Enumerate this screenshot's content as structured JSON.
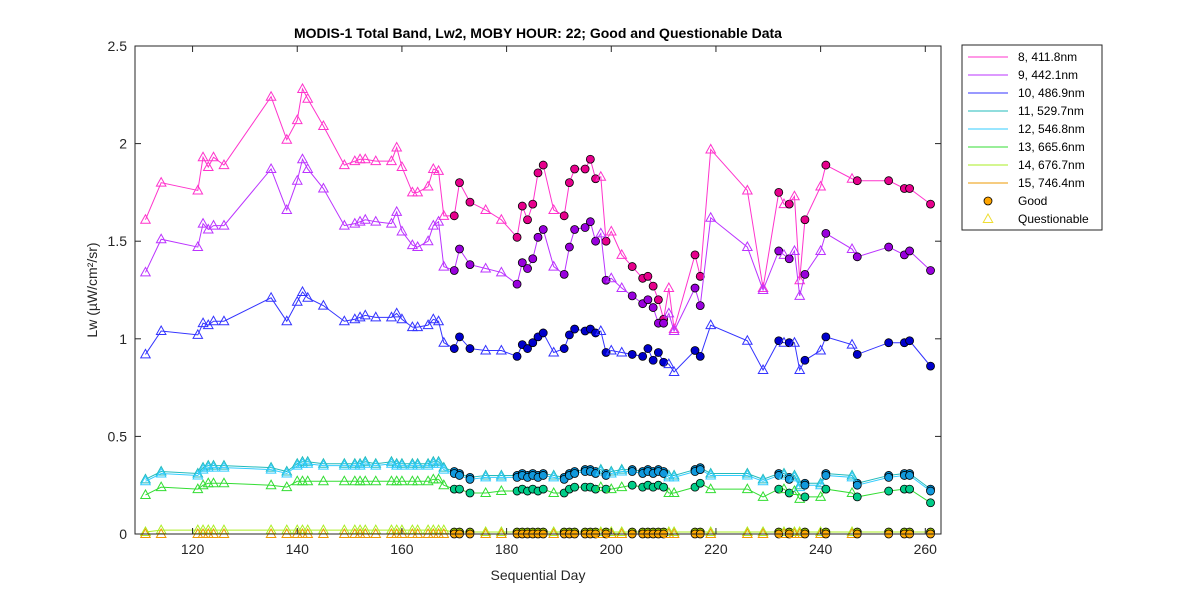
{
  "chart_data": {
    "type": "line",
    "title": "MODIS-1 Total Band,  Lw2, MOBY HOUR: 22;  Good and Questionable Data",
    "xlabel": "Sequential Day",
    "ylabel": "Lw (µW/cm²/sr)",
    "xlim": [
      109,
      263
    ],
    "ylim": [
      0,
      2.5
    ],
    "xticks": [
      120,
      140,
      160,
      180,
      200,
      220,
      240,
      260
    ],
    "xtick_labels": [
      "120",
      "140",
      "160",
      "180",
      "200",
      "220",
      "240",
      "260"
    ],
    "yticks": [
      0,
      0.5,
      1,
      1.5,
      2,
      2.5
    ],
    "ytick_labels": [
      "0",
      "0.5",
      "1",
      "1.5",
      "2",
      "2.5"
    ],
    "legend_position": "outside-top-right",
    "x": [
      111,
      114,
      121,
      122,
      123,
      124,
      126,
      135,
      138,
      140,
      141,
      142,
      145,
      149,
      151,
      152,
      153,
      155,
      158,
      159,
      160,
      162,
      163,
      165,
      166,
      167,
      168,
      170,
      171,
      173,
      176,
      179,
      182,
      183,
      184,
      185,
      186,
      187,
      189,
      191,
      192,
      193,
      195,
      196,
      197,
      198,
      199,
      200,
      202,
      204,
      206,
      207,
      208,
      209,
      210,
      211,
      212,
      216,
      217,
      219,
      226,
      229,
      232,
      233,
      234,
      235,
      236,
      237,
      240,
      241,
      246,
      247,
      253,
      256,
      257,
      261
    ],
    "markers": [
      "Q",
      "Q",
      "Q",
      "Q",
      "Q",
      "Q",
      "Q",
      "Q",
      "Q",
      "Q",
      "Q",
      "Q",
      "Q",
      "Q",
      "Q",
      "Q",
      "Q",
      "Q",
      "Q",
      "Q",
      "Q",
      "Q",
      "Q",
      "Q",
      "Q",
      "Q",
      "Q",
      "G",
      "G",
      "G",
      "Q",
      "Q",
      "G",
      "G",
      "G",
      "G",
      "G",
      "G",
      "Q",
      "G",
      "G",
      "G",
      "G",
      "G",
      "G",
      "Q",
      "G",
      "Q",
      "Q",
      "G",
      "G",
      "G",
      "G",
      "G",
      "G",
      "Q",
      "Q",
      "G",
      "G",
      "Q",
      "Q",
      "Q",
      "G",
      "Q",
      "G",
      "Q",
      "Q",
      "G",
      "Q",
      "G",
      "Q",
      "G",
      "G",
      "G",
      "G",
      "G"
    ],
    "series": [
      {
        "name": "8, 411.8nm",
        "color": "#ff33cc",
        "color_good": "#e6008c",
        "values": [
          1.61,
          1.8,
          1.76,
          1.93,
          1.88,
          1.93,
          1.89,
          2.24,
          2.02,
          2.12,
          2.28,
          2.23,
          2.09,
          1.89,
          1.91,
          1.92,
          1.92,
          1.91,
          1.91,
          1.98,
          1.88,
          1.75,
          1.75,
          1.78,
          1.87,
          1.86,
          1.63,
          1.63,
          1.8,
          1.7,
          1.66,
          1.61,
          1.52,
          1.68,
          1.61,
          1.69,
          1.85,
          1.89,
          1.66,
          1.63,
          1.8,
          1.87,
          1.87,
          1.92,
          1.82,
          1.83,
          1.5,
          1.55,
          1.43,
          1.37,
          1.31,
          1.32,
          1.27,
          1.2,
          1.1,
          1.26,
          1.05,
          1.43,
          1.32,
          1.97,
          1.76,
          1.26,
          1.75,
          1.69,
          1.69,
          1.73,
          1.3,
          1.61,
          1.78,
          1.89,
          1.82,
          1.81,
          1.81,
          1.77,
          1.77,
          1.69
        ]
      },
      {
        "name": "9, 442.1nm",
        "color": "#bb33ff",
        "color_good": "#9900dd",
        "values": [
          1.34,
          1.51,
          1.47,
          1.59,
          1.56,
          1.58,
          1.58,
          1.87,
          1.66,
          1.81,
          1.92,
          1.87,
          1.77,
          1.58,
          1.59,
          1.6,
          1.61,
          1.6,
          1.59,
          1.65,
          1.55,
          1.48,
          1.47,
          1.5,
          1.58,
          1.6,
          1.37,
          1.35,
          1.46,
          1.38,
          1.36,
          1.34,
          1.28,
          1.39,
          1.36,
          1.41,
          1.52,
          1.56,
          1.37,
          1.33,
          1.47,
          1.56,
          1.57,
          1.6,
          1.5,
          1.54,
          1.3,
          1.31,
          1.26,
          1.22,
          1.18,
          1.2,
          1.16,
          1.08,
          1.08,
          1.13,
          1.04,
          1.26,
          1.17,
          1.62,
          1.47,
          1.25,
          1.45,
          1.43,
          1.41,
          1.45,
          1.22,
          1.33,
          1.45,
          1.54,
          1.46,
          1.42,
          1.47,
          1.43,
          1.45,
          1.35
        ]
      },
      {
        "name": "10, 486.9nm",
        "color": "#3333ff",
        "color_good": "#0000cc",
        "values": [
          0.92,
          1.04,
          1.02,
          1.08,
          1.07,
          1.09,
          1.09,
          1.21,
          1.09,
          1.19,
          1.24,
          1.21,
          1.17,
          1.09,
          1.1,
          1.11,
          1.12,
          1.11,
          1.11,
          1.13,
          1.1,
          1.06,
          1.06,
          1.07,
          1.1,
          1.09,
          0.98,
          0.95,
          1.01,
          0.95,
          0.94,
          0.94,
          0.91,
          0.97,
          0.95,
          0.98,
          1.01,
          1.03,
          0.93,
          0.95,
          1.02,
          1.05,
          1.04,
          1.05,
          1.03,
          1.04,
          0.93,
          0.94,
          0.93,
          0.92,
          0.91,
          0.95,
          0.89,
          0.93,
          0.88,
          0.87,
          0.83,
          0.94,
          0.91,
          1.07,
          0.99,
          0.84,
          0.99,
          0.98,
          0.98,
          0.98,
          0.84,
          0.89,
          0.94,
          1.01,
          0.97,
          0.92,
          0.98,
          0.98,
          0.99,
          0.86
        ]
      },
      {
        "name": "11, 529.7nm",
        "color": "#22bbbb",
        "color_good": "#0088cc",
        "values": [
          0.28,
          0.32,
          0.31,
          0.34,
          0.35,
          0.35,
          0.35,
          0.34,
          0.32,
          0.36,
          0.37,
          0.37,
          0.36,
          0.36,
          0.36,
          0.36,
          0.37,
          0.36,
          0.37,
          0.36,
          0.36,
          0.36,
          0.36,
          0.36,
          0.37,
          0.37,
          0.34,
          0.32,
          0.31,
          0.29,
          0.3,
          0.3,
          0.3,
          0.31,
          0.3,
          0.31,
          0.3,
          0.31,
          0.3,
          0.29,
          0.31,
          0.32,
          0.33,
          0.33,
          0.32,
          0.33,
          0.31,
          0.32,
          0.33,
          0.33,
          0.32,
          0.33,
          0.32,
          0.33,
          0.32,
          0.3,
          0.3,
          0.33,
          0.34,
          0.31,
          0.31,
          0.28,
          0.31,
          0.31,
          0.29,
          0.3,
          0.25,
          0.26,
          0.26,
          0.31,
          0.3,
          0.26,
          0.3,
          0.31,
          0.31,
          0.23
        ]
      },
      {
        "name": "12, 546.8nm",
        "color": "#33ccff",
        "color_good": "#1199dd",
        "values": [
          0.27,
          0.31,
          0.3,
          0.33,
          0.34,
          0.34,
          0.34,
          0.33,
          0.31,
          0.35,
          0.36,
          0.36,
          0.35,
          0.35,
          0.35,
          0.35,
          0.36,
          0.35,
          0.36,
          0.35,
          0.35,
          0.35,
          0.35,
          0.35,
          0.36,
          0.36,
          0.33,
          0.31,
          0.3,
          0.28,
          0.29,
          0.29,
          0.29,
          0.3,
          0.29,
          0.3,
          0.29,
          0.3,
          0.29,
          0.28,
          0.3,
          0.31,
          0.32,
          0.32,
          0.31,
          0.32,
          0.3,
          0.31,
          0.32,
          0.32,
          0.31,
          0.32,
          0.31,
          0.32,
          0.31,
          0.29,
          0.29,
          0.32,
          0.33,
          0.3,
          0.3,
          0.27,
          0.3,
          0.3,
          0.28,
          0.29,
          0.24,
          0.25,
          0.25,
          0.3,
          0.29,
          0.25,
          0.29,
          0.3,
          0.3,
          0.22
        ]
      },
      {
        "name": "13, 665.6nm",
        "color": "#33dd33",
        "color_good": "#00cc88",
        "values": [
          0.2,
          0.24,
          0.23,
          0.25,
          0.26,
          0.26,
          0.26,
          0.25,
          0.24,
          0.27,
          0.27,
          0.27,
          0.27,
          0.27,
          0.27,
          0.27,
          0.27,
          0.27,
          0.27,
          0.27,
          0.27,
          0.27,
          0.27,
          0.27,
          0.28,
          0.28,
          0.25,
          0.23,
          0.23,
          0.21,
          0.21,
          0.22,
          0.22,
          0.23,
          0.22,
          0.23,
          0.22,
          0.23,
          0.21,
          0.21,
          0.23,
          0.24,
          0.24,
          0.24,
          0.23,
          0.24,
          0.23,
          0.23,
          0.24,
          0.25,
          0.24,
          0.25,
          0.24,
          0.25,
          0.24,
          0.21,
          0.21,
          0.24,
          0.26,
          0.23,
          0.23,
          0.19,
          0.23,
          0.23,
          0.21,
          0.22,
          0.18,
          0.19,
          0.19,
          0.23,
          0.21,
          0.19,
          0.22,
          0.23,
          0.23,
          0.16
        ]
      },
      {
        "name": "14, 676.7nm",
        "color": "#aaee22",
        "color_good": "#99cc00",
        "values": [
          0.01,
          0.02,
          0.02,
          0.02,
          0.02,
          0.02,
          0.02,
          0.02,
          0.02,
          0.02,
          0.02,
          0.02,
          0.02,
          0.02,
          0.02,
          0.02,
          0.02,
          0.02,
          0.02,
          0.02,
          0.02,
          0.02,
          0.02,
          0.02,
          0.02,
          0.02,
          0.02,
          0.01,
          0.01,
          0.01,
          0.01,
          0.01,
          0.01,
          0.01,
          0.01,
          0.01,
          0.01,
          0.01,
          0.01,
          0.01,
          0.01,
          0.01,
          0.01,
          0.01,
          0.01,
          0.01,
          0.01,
          0.01,
          0.01,
          0.01,
          0.01,
          0.01,
          0.01,
          0.01,
          0.01,
          0.01,
          0.01,
          0.01,
          0.01,
          0.01,
          0.01,
          0.01,
          0.01,
          0.01,
          0.01,
          0.01,
          0.01,
          0.01,
          0.01,
          0.01,
          0.01,
          0.01,
          0.01,
          0.01,
          0.01,
          0.01
        ]
      },
      {
        "name": "15, 746.4nm",
        "color": "#ee9900",
        "color_good": "#ffaa00",
        "values": [
          0.0,
          0.0,
          0.0,
          0.0,
          0.0,
          0.0,
          0.0,
          0.0,
          0.0,
          0.0,
          0.0,
          0.0,
          0.0,
          0.0,
          0.0,
          0.0,
          0.0,
          0.0,
          0.0,
          0.0,
          0.0,
          0.0,
          0.0,
          0.0,
          0.0,
          0.0,
          0.0,
          0.0,
          0.0,
          0.0,
          0.0,
          0.0,
          0.0,
          0.0,
          0.0,
          0.0,
          0.0,
          0.0,
          0.0,
          0.0,
          0.0,
          0.0,
          0.0,
          0.0,
          0.0,
          0.0,
          0.0,
          0.0,
          0.0,
          0.0,
          0.0,
          0.0,
          0.0,
          0.0,
          0.0,
          0.0,
          0.0,
          0.0,
          0.0,
          0.0,
          0.0,
          0.0,
          0.0,
          0.0,
          0.0,
          0.0,
          0.0,
          0.0,
          0.0,
          0.0,
          0.0,
          0.0,
          0.0,
          0.0,
          0.0,
          0.0
        ]
      }
    ],
    "legend": {
      "good_label": "Good",
      "questionable_label": "Questionable",
      "good_color": "#ffa500",
      "questionable_color": "#eedd33"
    }
  }
}
